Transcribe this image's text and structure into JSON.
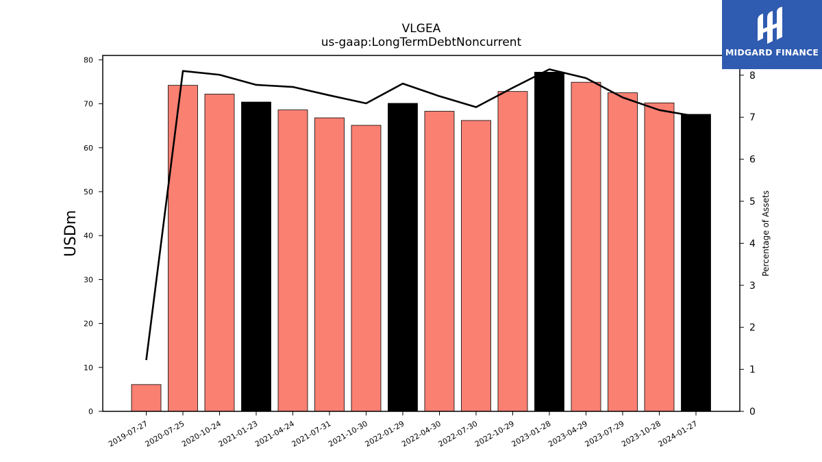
{
  "brand": {
    "name": "MIDGARD FINANCE",
    "logo_icon": "midgard-logo-icon",
    "color": "#2f5bb0"
  },
  "chart_data": {
    "type": "bar",
    "title": "VLGEA",
    "subtitle": "us-gaap:LongTermDebtNoncurrent",
    "ylabel": "USDm",
    "y2label": "Percentage of Assets",
    "ylim": [
      0,
      81
    ],
    "y2lim": [
      0,
      8.47
    ],
    "yticks": [
      0,
      10,
      20,
      30,
      40,
      50,
      60,
      70,
      80
    ],
    "y2ticks": [
      0,
      1,
      2,
      3,
      4,
      5,
      6,
      7,
      8
    ],
    "categories": [
      "2019-07-27",
      "2020-07-25",
      "2020-10-24",
      "2021-01-23",
      "2021-04-24",
      "2021-07-31",
      "2021-10-30",
      "2022-01-29",
      "2022-04-30",
      "2022-07-30",
      "2022-10-29",
      "2023-01-28",
      "2023-04-29",
      "2023-07-29",
      "2023-10-28",
      "2024-01-27"
    ],
    "series": [
      {
        "type": "bar",
        "axis": "left",
        "values": [
          6.1,
          74.2,
          72.2,
          70.4,
          68.6,
          66.8,
          65.1,
          70.1,
          68.3,
          66.2,
          72.8,
          77.2,
          74.9,
          72.5,
          70.2,
          67.6
        ],
        "highlight": [
          false,
          false,
          false,
          true,
          false,
          false,
          false,
          true,
          false,
          false,
          false,
          true,
          false,
          false,
          false,
          true
        ]
      },
      {
        "type": "line",
        "axis": "right",
        "values": [
          1.22,
          8.1,
          8.01,
          7.77,
          7.72,
          7.52,
          7.33,
          7.8,
          7.5,
          7.24,
          7.7,
          8.14,
          7.93,
          7.47,
          7.17,
          7.02
        ]
      }
    ],
    "colors": {
      "bar": "#fa8072",
      "bar_highlight": "#000000",
      "line": "#000000"
    },
    "grid": false,
    "legend": "none"
  }
}
